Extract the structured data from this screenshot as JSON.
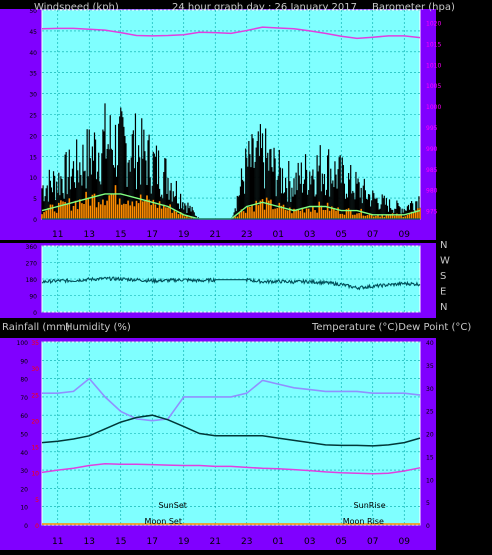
{
  "header": {
    "left": "Windspeed (kph)",
    "center": "24 hour graph day : 26 January 2017",
    "right": "Barometer (hpa)"
  },
  "time_labels": [
    "11",
    "13",
    "15",
    "17",
    "19",
    "21",
    "23",
    "01",
    "03",
    "05",
    "07",
    "09"
  ],
  "direction_labels": [
    "N",
    "W",
    "S",
    "E",
    "N"
  ],
  "bottom_header": {
    "left1": "Rainfall (mm)",
    "left2": "Humidity (%)",
    "right": "Temperature (°C)Dew Point (°C)"
  },
  "annotations": {
    "sunset": "SunSet",
    "sunrise": "SunRise",
    "moonset": "Moon Set",
    "moonrise": "Moon Rise"
  },
  "colors": {
    "panel_bg": "#7fffff",
    "outer_bg": "#8000ff",
    "grid": "#00a8a8",
    "barometer": "#e040e0",
    "wind_gust": "#000000",
    "wind_avg": "#80ff80",
    "wind_orange": "#ff8c00",
    "direction": "#00505a",
    "humidity": "#9090ff",
    "temperature": "#003838",
    "dewpoint": "#e040e0"
  },
  "chart_data": [
    {
      "type": "line",
      "name": "wind-barometer",
      "title": "24 hour graph day : 26 January 2017",
      "ylabel_left": "Windspeed (kph)",
      "ylabel_right": "Barometer (hpa)",
      "left_ticks": [
        "0",
        "5",
        "10",
        "15",
        "20",
        "25",
        "30",
        "35",
        "40",
        "45",
        "50"
      ],
      "right_ticks": [
        "975",
        "980",
        "985",
        "990",
        "995",
        "1000",
        "1005",
        "1010",
        "1015",
        "1020"
      ],
      "ylim_left": [
        0,
        50
      ],
      "ylim_right": [
        973,
        1023
      ],
      "x_hours": [
        0,
        1,
        2,
        3,
        4,
        5,
        6,
        7,
        8,
        9,
        10,
        11,
        12,
        13,
        14,
        15,
        16,
        17,
        18,
        19,
        20,
        21,
        22,
        23,
        24
      ],
      "barometer": [
        1018.5,
        1018.6,
        1018.6,
        1018.4,
        1018.2,
        1017.6,
        1016.9,
        1016.8,
        1016.9,
        1017.1,
        1017.7,
        1017.6,
        1017.4,
        1018.1,
        1018.9,
        1018.7,
        1018.5,
        1018.0,
        1017.4,
        1016.7,
        1016.2,
        1016.5,
        1016.8,
        1016.8,
        1016.4
      ],
      "wind_gust": [
        9,
        11,
        14,
        18,
        22,
        21,
        20,
        16,
        12,
        5,
        0,
        0,
        0,
        15,
        18,
        13,
        10,
        14,
        15,
        12,
        9,
        6,
        4,
        3,
        6
      ],
      "wind_avg": [
        2,
        3,
        4,
        5,
        6,
        6,
        5,
        4,
        3,
        1,
        0,
        0,
        0,
        3,
        4,
        3,
        2,
        3,
        3,
        2,
        2,
        1,
        1,
        1,
        2
      ]
    },
    {
      "type": "line",
      "name": "wind-direction",
      "left_ticks": [
        "360",
        "270",
        "180",
        "90",
        "0"
      ],
      "direction_deg": [
        165,
        170,
        172,
        178,
        182,
        180,
        176,
        170,
        172,
        176,
        170,
        176,
        176,
        176,
        165,
        167,
        164,
        166,
        160,
        150,
        132,
        140,
        148,
        155,
        152
      ]
    },
    {
      "type": "line",
      "name": "temp-humidity",
      "left_ticks": [
        "0",
        "10",
        "20",
        "30",
        "40",
        "50",
        "60",
        "70",
        "80",
        "90",
        "100"
      ],
      "rain_ticks": [
        "0",
        "5",
        "10",
        "15",
        "20",
        "25",
        "30",
        "35"
      ],
      "right_ticks": [
        "0",
        "5",
        "10",
        "15",
        "20",
        "25",
        "30",
        "35",
        "40"
      ],
      "x_hours": [
        0,
        1,
        2,
        3,
        4,
        5,
        6,
        7,
        8,
        9,
        10,
        11,
        12,
        13,
        14,
        15,
        16,
        17,
        18,
        19,
        20,
        21,
        22,
        23,
        24
      ],
      "humidity": [
        72,
        72,
        73,
        80,
        70,
        62,
        58,
        57,
        58,
        70,
        70,
        70,
        70,
        72,
        79,
        77,
        75,
        74,
        73,
        73,
        73,
        72,
        72,
        72,
        71
      ],
      "temperature": [
        18,
        18.3,
        18.8,
        19.5,
        21,
        22.5,
        23.5,
        24,
        23,
        21.5,
        20,
        19.5,
        19.5,
        19.5,
        19.5,
        19,
        18.5,
        18,
        17.5,
        17.4,
        17.4,
        17.3,
        17.5,
        18,
        19
      ],
      "dewpoint": [
        11.5,
        12,
        12.4,
        13,
        13.4,
        13.3,
        13.3,
        13.2,
        13.1,
        13,
        13,
        12.8,
        12.8,
        12.6,
        12.4,
        12.3,
        12.1,
        11.9,
        11.6,
        11.4,
        11.3,
        11.2,
        11.3,
        11.8,
        12.5
      ],
      "rainfall": [
        0,
        0,
        0,
        0,
        0,
        0,
        0,
        0,
        0,
        0,
        0,
        0,
        0,
        0,
        0,
        0,
        0,
        0,
        0,
        0,
        0,
        0,
        0,
        0,
        0
      ]
    }
  ]
}
